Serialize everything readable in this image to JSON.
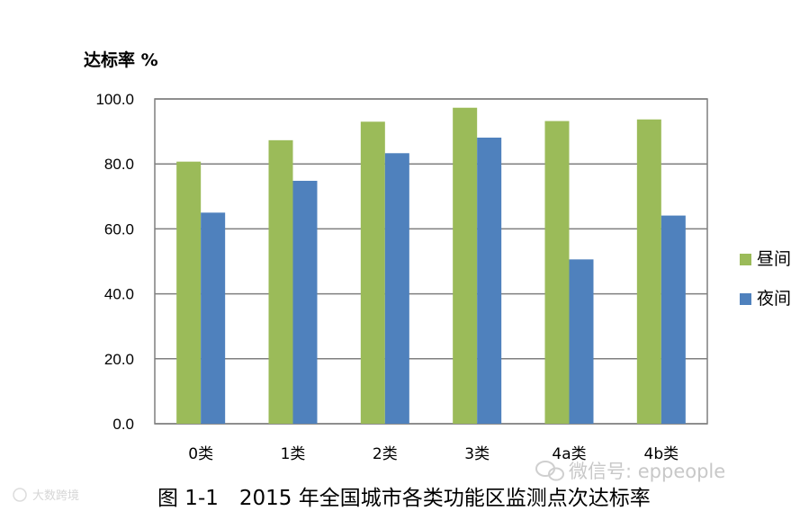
{
  "chart_data": {
    "type": "bar",
    "ylabel": "达标率 %",
    "categories": [
      "0类",
      "1类",
      "2类",
      "3类",
      "4a类",
      "4b类"
    ],
    "series": [
      {
        "name": "昼间",
        "color": "#9bbb59",
        "values": [
          80.7,
          87.3,
          93.0,
          97.3,
          93.2,
          93.7
        ]
      },
      {
        "name": "夜间",
        "color": "#4f81bd",
        "values": [
          65.0,
          74.8,
          83.3,
          88.1,
          50.6,
          64.1
        ]
      }
    ],
    "ylim": [
      0,
      100
    ],
    "yticks": [
      "0.0",
      "20.0",
      "40.0",
      "60.0",
      "80.0",
      "100.0"
    ],
    "grid": true,
    "legend_position": "right",
    "caption": "图 1-1　2015 年全国城市各类功能区监测点次达标率"
  },
  "watermarks": {
    "wechat": "微信号: eppeople",
    "bottom_left": "大数跨境"
  }
}
